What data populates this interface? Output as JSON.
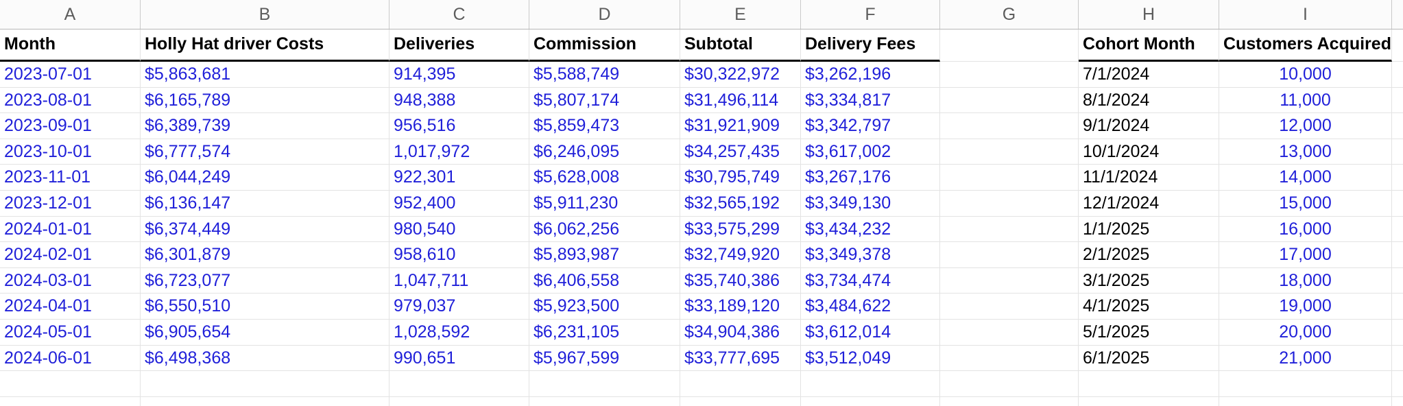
{
  "sheet": {
    "columns": [
      {
        "letter": "A",
        "header": "Month",
        "key": "month"
      },
      {
        "letter": "B",
        "header": "Holly Hat driver Costs",
        "key": "driver_costs"
      },
      {
        "letter": "C",
        "header": "Deliveries",
        "key": "deliveries"
      },
      {
        "letter": "D",
        "header": "Commission",
        "key": "commission"
      },
      {
        "letter": "E",
        "header": "Subtotal",
        "key": "subtotal"
      },
      {
        "letter": "F",
        "header": "Delivery Fees",
        "key": "delivery_fees"
      },
      {
        "letter": "G",
        "header": "",
        "key": "gap"
      },
      {
        "letter": "H",
        "header": "Cohort Month",
        "key": "cohort_month"
      },
      {
        "letter": "I",
        "header": "Customers Acquired",
        "key": "customers_acquired"
      }
    ],
    "rows": [
      {
        "month": "2023-07-01",
        "driver_costs": "$5,863,681",
        "deliveries": "914,395",
        "commission": "$5,588,749",
        "subtotal": "$30,322,972",
        "delivery_fees": "$3,262,196",
        "gap": "",
        "cohort_month": "7/1/2024",
        "customers_acquired": "10,000"
      },
      {
        "month": "2023-08-01",
        "driver_costs": "$6,165,789",
        "deliveries": "948,388",
        "commission": "$5,807,174",
        "subtotal": "$31,496,114",
        "delivery_fees": "$3,334,817",
        "gap": "",
        "cohort_month": "8/1/2024",
        "customers_acquired": "11,000"
      },
      {
        "month": "2023-09-01",
        "driver_costs": "$6,389,739",
        "deliveries": "956,516",
        "commission": "$5,859,473",
        "subtotal": "$31,921,909",
        "delivery_fees": "$3,342,797",
        "gap": "",
        "cohort_month": "9/1/2024",
        "customers_acquired": "12,000"
      },
      {
        "month": "2023-10-01",
        "driver_costs": "$6,777,574",
        "deliveries": "1,017,972",
        "commission": "$6,246,095",
        "subtotal": "$34,257,435",
        "delivery_fees": "$3,617,002",
        "gap": "",
        "cohort_month": "10/1/2024",
        "customers_acquired": "13,000"
      },
      {
        "month": "2023-11-01",
        "driver_costs": "$6,044,249",
        "deliveries": "922,301",
        "commission": "$5,628,008",
        "subtotal": "$30,795,749",
        "delivery_fees": "$3,267,176",
        "gap": "",
        "cohort_month": "11/1/2024",
        "customers_acquired": "14,000"
      },
      {
        "month": "2023-12-01",
        "driver_costs": "$6,136,147",
        "deliveries": "952,400",
        "commission": "$5,911,230",
        "subtotal": "$32,565,192",
        "delivery_fees": "$3,349,130",
        "gap": "",
        "cohort_month": "12/1/2024",
        "customers_acquired": "15,000"
      },
      {
        "month": "2024-01-01",
        "driver_costs": "$6,374,449",
        "deliveries": "980,540",
        "commission": "$6,062,256",
        "subtotal": "$33,575,299",
        "delivery_fees": "$3,434,232",
        "gap": "",
        "cohort_month": "1/1/2025",
        "customers_acquired": "16,000"
      },
      {
        "month": "2024-02-01",
        "driver_costs": "$6,301,879",
        "deliveries": "958,610",
        "commission": "$5,893,987",
        "subtotal": "$32,749,920",
        "delivery_fees": "$3,349,378",
        "gap": "",
        "cohort_month": "2/1/2025",
        "customers_acquired": "17,000"
      },
      {
        "month": "2024-03-01",
        "driver_costs": "$6,723,077",
        "deliveries": "1,047,711",
        "commission": "$6,406,558",
        "subtotal": "$35,740,386",
        "delivery_fees": "$3,734,474",
        "gap": "",
        "cohort_month": "3/1/2025",
        "customers_acquired": "18,000"
      },
      {
        "month": "2024-04-01",
        "driver_costs": "$6,550,510",
        "deliveries": "979,037",
        "commission": "$5,923,500",
        "subtotal": "$33,189,120",
        "delivery_fees": "$3,484,622",
        "gap": "",
        "cohort_month": "4/1/2025",
        "customers_acquired": "19,000"
      },
      {
        "month": "2024-05-01",
        "driver_costs": "$6,905,654",
        "deliveries": "1,028,592",
        "commission": "$6,231,105",
        "subtotal": "$34,904,386",
        "delivery_fees": "$3,612,014",
        "gap": "",
        "cohort_month": "5/1/2025",
        "customers_acquired": "20,000"
      },
      {
        "month": "2024-06-01",
        "driver_costs": "$6,498,368",
        "deliveries": "990,651",
        "commission": "$5,967,599",
        "subtotal": "$33,777,695",
        "delivery_fees": "$3,512,049",
        "gap": "",
        "cohort_month": "6/1/2025",
        "customers_acquired": "21,000"
      }
    ],
    "empty_trailing_rows": 2,
    "colors": {
      "input_value_blue": "#1f1fd9",
      "header_text_black": "#000000",
      "column_letter_gray": "#5d5d5d",
      "gridline_gray": "#e3e3e3",
      "header_underline_black": "#000000"
    }
  }
}
